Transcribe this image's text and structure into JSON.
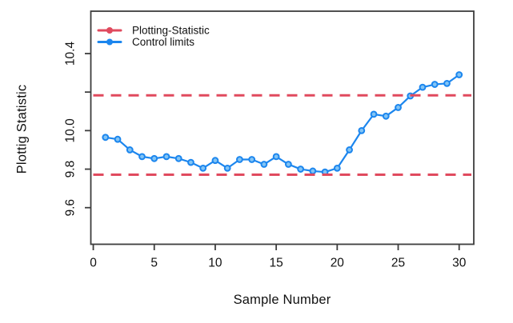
{
  "figure": {
    "background": "#ffffff",
    "axis_color": "#3d3d3d",
    "text_color": "#111111"
  },
  "chart_data": {
    "type": "line",
    "title": "",
    "xlabel": "Sample Number",
    "ylabel": "Plottig Statistic",
    "xlim": [
      -0.2,
      31.2
    ],
    "ylim": [
      9.41,
      10.62
    ],
    "grid": false,
    "x_ticks": [
      0,
      5,
      10,
      15,
      20,
      25,
      30
    ],
    "y_ticks": [
      {
        "value": 9.6,
        "label": "9.6"
      },
      {
        "value": 9.8,
        "label": "9.8"
      },
      {
        "value": 10.0,
        "label": "10.0"
      },
      {
        "value": 10.2,
        "label": ""
      },
      {
        "value": 10.4,
        "label": "10.4"
      }
    ],
    "x": [
      1,
      2,
      3,
      4,
      5,
      6,
      7,
      8,
      9,
      10,
      11,
      12,
      13,
      14,
      15,
      16,
      17,
      18,
      19,
      20,
      21,
      22,
      23,
      24,
      25,
      26,
      27,
      28,
      29,
      30
    ],
    "series": [
      {
        "name": "Control limits",
        "color": "#1c86ee",
        "marker_fill": "#82c4f5",
        "values": [
          9.965,
          9.955,
          9.9,
          9.865,
          9.855,
          9.865,
          9.855,
          9.835,
          9.805,
          9.845,
          9.805,
          9.85,
          9.85,
          9.825,
          9.865,
          9.825,
          9.8,
          9.79,
          9.785,
          9.805,
          9.9,
          10.0,
          10.085,
          10.075,
          10.12,
          10.18,
          10.225,
          10.24,
          10.245,
          10.29
        ]
      }
    ],
    "control_limits": {
      "name": "Plotting-Statistic",
      "color": "#e04a5e",
      "style": "dashed",
      "upper": 10.183,
      "lower": 9.771
    },
    "legend": {
      "position": "top-left",
      "entries": [
        {
          "label": "Plotting-Statistic",
          "color": "#e04a5e"
        },
        {
          "label": "Control limits",
          "color": "#1c86ee"
        }
      ]
    }
  }
}
